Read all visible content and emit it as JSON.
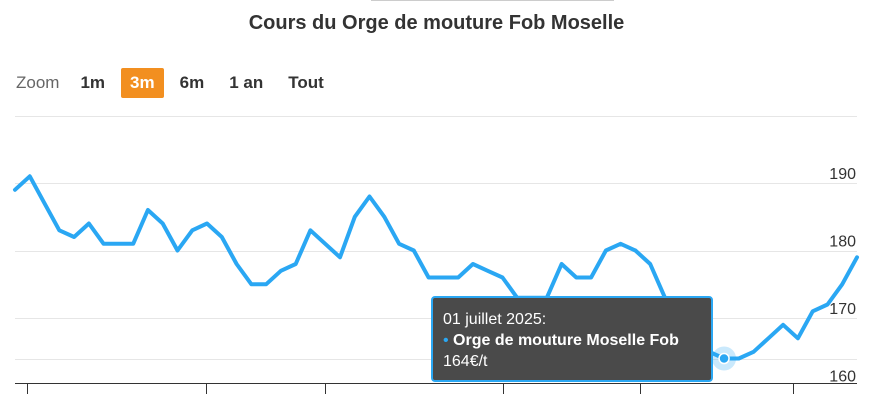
{
  "chart_data": {
    "type": "line",
    "title": "Cours du Orge de mouture Fob Moselle",
    "series": [
      {
        "name": "Orge de mouture Moselle Fob",
        "color": "#2aa7f3",
        "values": [
          189,
          191,
          187,
          183,
          182,
          184,
          181,
          181,
          181,
          186,
          184,
          180,
          183,
          184,
          182,
          178,
          175,
          175,
          177,
          178,
          183,
          181,
          179,
          185,
          188,
          185,
          181,
          180,
          176,
          176,
          176,
          178,
          177,
          176,
          173,
          173,
          173,
          178,
          176,
          176,
          180,
          181,
          180,
          178,
          173,
          169,
          166,
          165,
          164,
          164,
          165,
          167,
          169,
          167,
          171,
          172,
          175,
          179
        ]
      }
    ],
    "y_ticks": [
      190,
      180,
      170,
      160
    ],
    "ylim": [
      160,
      200
    ],
    "grid": true,
    "y_axis_side": "right",
    "tooltip": {
      "date": "01 juillet 2025:",
      "series_name": "Orge de mouture Moselle Fob",
      "value": "164€/t",
      "point_index": 48
    }
  },
  "zoom": {
    "label": "Zoom",
    "buttons": [
      "1m",
      "3m",
      "6m",
      "1 an",
      "Tout"
    ],
    "active": "3m"
  }
}
